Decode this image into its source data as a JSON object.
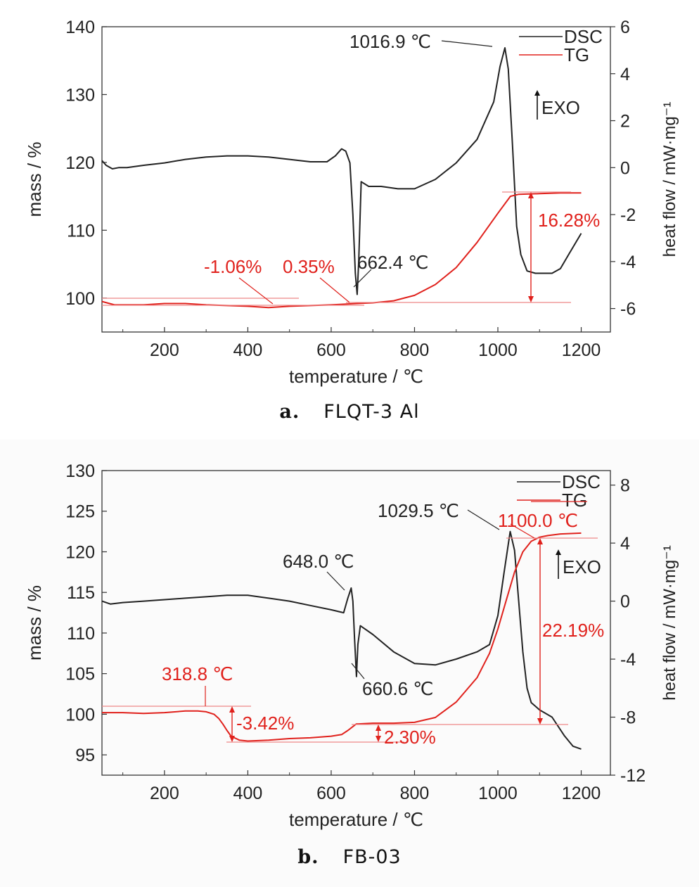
{
  "chart_data": [
    {
      "type": "line",
      "panel_label": "a.",
      "panel_name": "FLQT-3 Al",
      "xlabel": "temperature / ℃",
      "ylabel_left": "mass / %",
      "ylabel_right": "heat flow / mW·mg⁻¹",
      "xlim": [
        50,
        1270
      ],
      "ylim_left": [
        95,
        140
      ],
      "ylim_right": [
        -7,
        6
      ],
      "xticks": [
        200,
        400,
        600,
        800,
        1000,
        1200
      ],
      "yticks_left": [
        100,
        110,
        120,
        130,
        140
      ],
      "yticks_right": [
        -6,
        -4,
        -2,
        0,
        2,
        4,
        6
      ],
      "legend": {
        "position": "top-right",
        "entries": [
          {
            "label": "DSC",
            "color": "#222222"
          },
          {
            "label": "TG",
            "color": "#e0211c"
          }
        ]
      },
      "exo_label": "EXO",
      "series": [
        {
          "name": "DSC",
          "axis": "right",
          "color": "#222222",
          "x": [
            50,
            60,
            75,
            90,
            110,
            150,
            200,
            250,
            300,
            350,
            400,
            450,
            500,
            550,
            590,
            610,
            625,
            635,
            645,
            652,
            658,
            662.4,
            666,
            672,
            690,
            720,
            760,
            800,
            850,
            900,
            950,
            990,
            1005,
            1016.9,
            1025,
            1035,
            1045,
            1055,
            1070,
            1090,
            1110,
            1130,
            1150,
            1170,
            1200
          ],
          "y": [
            0.3,
            0.1,
            -0.05,
            0.0,
            0.0,
            0.1,
            0.2,
            0.35,
            0.45,
            0.5,
            0.5,
            0.45,
            0.35,
            0.25,
            0.25,
            0.5,
            0.8,
            0.7,
            0.2,
            -2.0,
            -4.5,
            -5.4,
            -4.0,
            -0.6,
            -0.8,
            -0.8,
            -0.9,
            -0.9,
            -0.5,
            0.2,
            1.2,
            2.8,
            4.3,
            5.1,
            4.2,
            1.0,
            -2.5,
            -3.7,
            -4.4,
            -4.5,
            -4.5,
            -4.5,
            -4.3,
            -3.7,
            -2.8
          ]
        },
        {
          "name": "TG",
          "axis": "left",
          "color": "#e0211c",
          "x": [
            50,
            80,
            150,
            200,
            250,
            300,
            350,
            400,
            450,
            500,
            550,
            600,
            662,
            700,
            750,
            800,
            850,
            900,
            950,
            1000,
            1030,
            1050,
            1100,
            1150,
            1200
          ],
          "y": [
            99.5,
            99.0,
            99.0,
            99.2,
            99.2,
            99.0,
            98.9,
            98.8,
            98.6,
            98.8,
            98.9,
            99.0,
            99.2,
            99.3,
            99.6,
            100.4,
            102.0,
            104.5,
            108.2,
            112.5,
            115.0,
            115.3,
            115.4,
            115.5,
            115.5
          ]
        }
      ],
      "annotations": [
        "1016.9 ℃",
        "662.4 ℃",
        "-1.06%",
        "0.35%",
        "16.28%"
      ]
    },
    {
      "type": "line",
      "panel_label": "b.",
      "panel_name": "FB-03",
      "xlabel": "temperature / ℃",
      "ylabel_left": "mass / %",
      "ylabel_right": "heat flow / mW·mg⁻¹",
      "xlim": [
        50,
        1270
      ],
      "ylim_left": [
        92.5,
        130
      ],
      "ylim_right": [
        -12,
        9
      ],
      "xticks": [
        200,
        400,
        600,
        800,
        1000,
        1200
      ],
      "yticks_left": [
        95,
        100,
        105,
        110,
        115,
        120,
        125,
        130
      ],
      "yticks_right": [
        -12,
        -8,
        -4,
        0,
        4,
        8
      ],
      "legend": {
        "position": "top-right",
        "entries": [
          {
            "label": "DSC",
            "color": "#222222"
          },
          {
            "label": "TG",
            "color": "#e0211c"
          }
        ]
      },
      "exo_label": "EXO",
      "series": [
        {
          "name": "DSC",
          "axis": "right",
          "color": "#222222",
          "x": [
            50,
            70,
            100,
            150,
            200,
            250,
            300,
            350,
            400,
            450,
            500,
            550,
            600,
            630,
            640,
            648,
            652,
            656,
            660.6,
            664,
            670,
            700,
            750,
            800,
            850,
            900,
            950,
            980,
            1000,
            1015,
            1029.5,
            1040,
            1050,
            1060,
            1070,
            1080,
            1100,
            1130,
            1160,
            1180,
            1200
          ],
          "y": [
            0.0,
            -0.2,
            -0.1,
            0.0,
            0.1,
            0.2,
            0.3,
            0.4,
            0.4,
            0.2,
            0.0,
            -0.3,
            -0.6,
            -0.8,
            0.2,
            0.9,
            0.0,
            -2.5,
            -5.2,
            -3.0,
            -1.7,
            -2.3,
            -3.5,
            -4.3,
            -4.4,
            -4.0,
            -3.5,
            -3.0,
            -1.0,
            2.0,
            4.8,
            3.5,
            0.0,
            -3.5,
            -6.0,
            -7.0,
            -7.5,
            -8.0,
            -9.3,
            -10.0,
            -10.2
          ]
        },
        {
          "name": "TG",
          "axis": "left",
          "color": "#e0211c",
          "x": [
            50,
            100,
            150,
            200,
            250,
            280,
            300,
            318.8,
            330,
            340,
            350,
            360,
            380,
            400,
            450,
            500,
            550,
            600,
            625,
            640,
            660,
            700,
            750,
            800,
            850,
            900,
            950,
            980,
            1000,
            1020,
            1040,
            1060,
            1080,
            1100,
            1120,
            1150,
            1200
          ],
          "y": [
            100.2,
            100.2,
            100.1,
            100.2,
            100.4,
            100.4,
            100.3,
            100.0,
            99.5,
            98.8,
            98.0,
            97.3,
            96.8,
            96.7,
            96.8,
            97.0,
            97.1,
            97.3,
            97.5,
            98.0,
            98.8,
            98.9,
            98.9,
            99.0,
            99.6,
            101.5,
            104.5,
            107.5,
            110.5,
            114.0,
            117.5,
            120.0,
            121.3,
            121.8,
            122.0,
            122.2,
            122.3
          ]
        }
      ],
      "annotations": [
        "648.0 ℃",
        "1029.5 ℃",
        "1100.0 ℃",
        "660.6 ℃",
        "318.8 ℃",
        "-3.42%",
        "2.30%",
        "22.19%"
      ]
    }
  ],
  "captions": {
    "a": {
      "label": "a.",
      "name": "FLQT-3 Al"
    },
    "b": {
      "label": "b.",
      "name": "FB-03"
    }
  }
}
